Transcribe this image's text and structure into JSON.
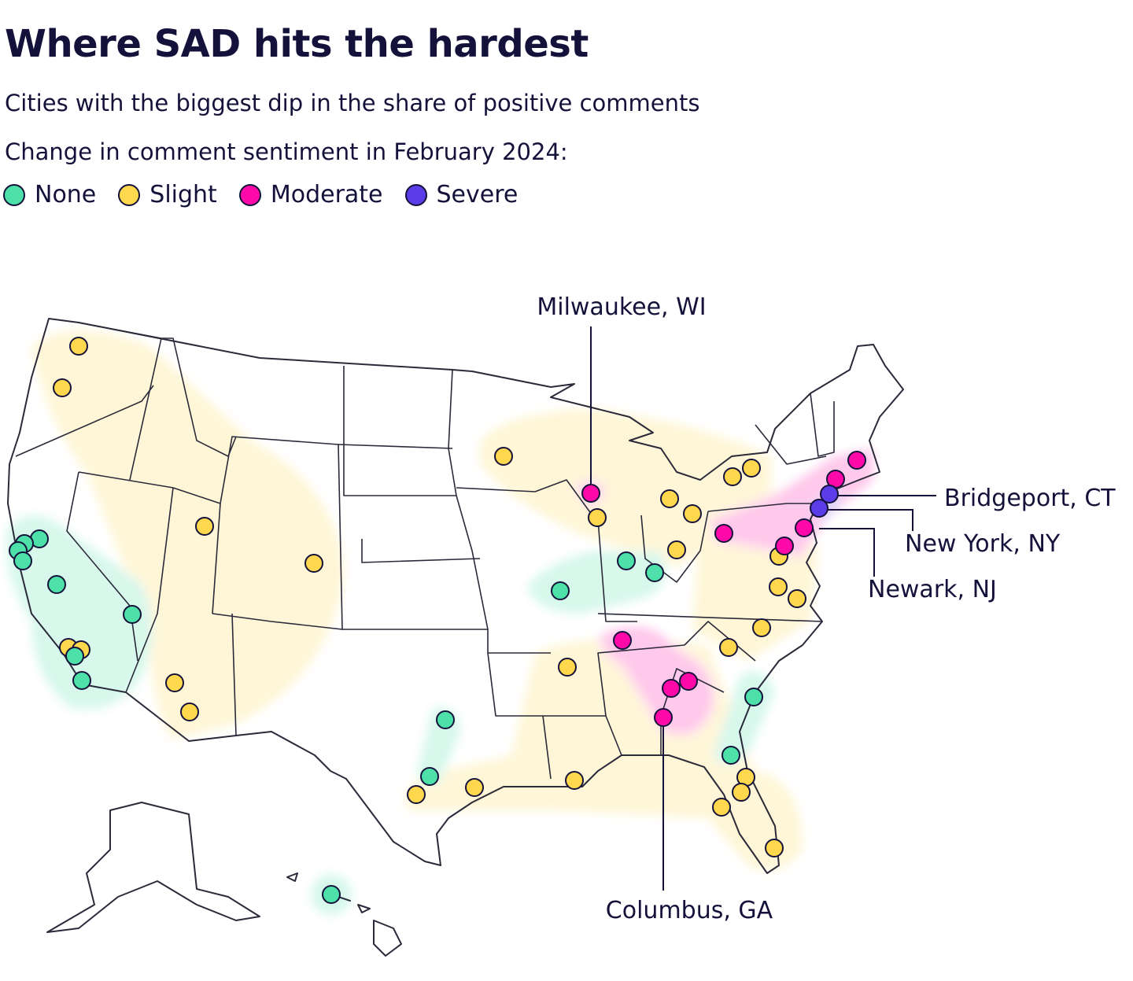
{
  "title": "Where SAD hits the hardest",
  "subtitle": "Cities with the biggest dip in the share of positive comments",
  "legend": {
    "title": "Change in comment sentiment in February 2024:",
    "items": [
      {
        "label": "None",
        "key": "none",
        "color": "#4de0a8"
      },
      {
        "label": "Slight",
        "key": "slight",
        "color": "#ffd84d"
      },
      {
        "label": "Moderate",
        "key": "moderate",
        "color": "#ff0aa8"
      },
      {
        "label": "Severe",
        "key": "severe",
        "color": "#5b3de8"
      }
    ]
  },
  "annotations": [
    {
      "label": "Milwaukee, WI",
      "category": "moderate"
    },
    {
      "label": "Bridgeport, CT",
      "category": "severe"
    },
    {
      "label": "New York, NY",
      "category": "severe"
    },
    {
      "label": "Newark, NJ",
      "category": "moderate"
    },
    {
      "label": "Columbus, GA",
      "category": "moderate"
    }
  ],
  "city_counts": {
    "none": 16,
    "slight": 28,
    "moderate": 10,
    "severe": 2
  },
  "colors": {
    "text": "#14123a",
    "map_outline": "#2a2a3a",
    "background": "#ffffff"
  }
}
